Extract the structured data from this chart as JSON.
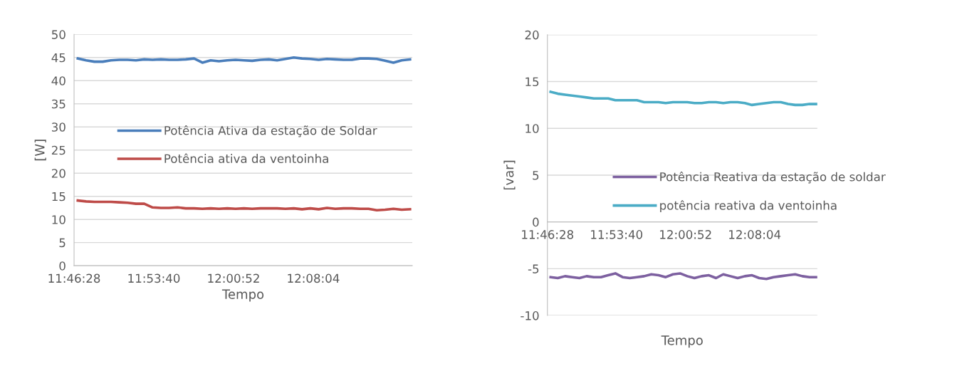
{
  "chart_data": [
    {
      "type": "line",
      "xlabel": "Tempo",
      "ylabel": "[W]",
      "x": [
        11.78,
        11.7925,
        11.805,
        11.8175,
        11.83,
        11.8425,
        11.855,
        11.8675,
        11.88,
        11.8925,
        11.905,
        11.9175,
        11.93,
        11.9425,
        11.955,
        11.9675,
        11.98,
        11.9925,
        12.005,
        12.0175,
        12.03,
        12.0425,
        12.055,
        12.0675,
        12.08,
        12.0925,
        12.105,
        12.1175,
        12.13,
        12.1425,
        12.155,
        12.1675,
        12.18,
        12.1925,
        12.205,
        12.2175,
        12.23,
        12.2425,
        12.255,
        12.2675,
        12.28
      ],
      "series": [
        {
          "name": "Potência Ativa da estação de Soldar",
          "color": "#4a7ebb",
          "values": [
            44.8,
            44.4,
            44.1,
            44.1,
            44.4,
            44.5,
            44.5,
            44.4,
            44.6,
            44.5,
            44.6,
            44.5,
            44.5,
            44.6,
            44.8,
            43.9,
            44.4,
            44.2,
            44.4,
            44.5,
            44.4,
            44.3,
            44.5,
            44.6,
            44.4,
            44.7,
            45.0,
            44.8,
            44.7,
            44.5,
            44.7,
            44.6,
            44.5,
            44.5,
            44.8,
            44.8,
            44.7,
            44.3,
            43.9,
            44.4,
            44.6
          ]
        },
        {
          "name": "Potência ativa da ventoinha",
          "color": "#be4b48",
          "values": [
            14.1,
            13.9,
            13.8,
            13.8,
            13.8,
            13.7,
            13.6,
            13.4,
            13.4,
            12.6,
            12.5,
            12.5,
            12.6,
            12.4,
            12.4,
            12.3,
            12.4,
            12.3,
            12.4,
            12.3,
            12.4,
            12.3,
            12.4,
            12.4,
            12.4,
            12.3,
            12.4,
            12.2,
            12.4,
            12.2,
            12.5,
            12.3,
            12.4,
            12.4,
            12.3,
            12.3,
            12.0,
            12.1,
            12.3,
            12.1,
            12.2
          ]
        }
      ],
      "xlim": [
        11.7744,
        12.2834
      ],
      "xticks": [
        {
          "value": 11.7744,
          "label": "11:46:28"
        },
        {
          "value": 11.8944,
          "label": "11:53:40"
        },
        {
          "value": 12.0144,
          "label": "12:00:52"
        },
        {
          "value": 12.1344,
          "label": "12:08:04"
        }
      ],
      "ylim": [
        0,
        50
      ],
      "yticks": [
        0,
        5,
        10,
        15,
        20,
        25,
        30,
        35,
        40,
        45,
        50
      ],
      "grid": "y",
      "legend": "center left",
      "marker": "none",
      "line_style": "solid"
    },
    {
      "type": "line",
      "xlabel": "Tempo",
      "ylabel": "[var]",
      "x": [
        11.78,
        11.7925,
        11.805,
        11.8175,
        11.83,
        11.8425,
        11.855,
        11.8675,
        11.88,
        11.8925,
        11.905,
        11.9175,
        11.93,
        11.9425,
        11.955,
        11.9675,
        11.98,
        11.9925,
        12.005,
        12.0175,
        12.03,
        12.0425,
        12.055,
        12.0675,
        12.08,
        12.0925,
        12.105,
        12.1175,
        12.13,
        12.1425,
        12.155,
        12.1675,
        12.18,
        12.1925,
        12.205,
        12.2175,
        12.23,
        12.2425
      ],
      "series": [
        {
          "name": "Potência Reativa da estação de soldar",
          "color": "#7d60a0",
          "values": [
            -5.9,
            -6.0,
            -5.8,
            -5.9,
            -6.0,
            -5.8,
            -5.9,
            -5.9,
            -5.7,
            -5.5,
            -5.9,
            -6.0,
            -5.9,
            -5.8,
            -5.6,
            -5.7,
            -5.9,
            -5.6,
            -5.5,
            -5.8,
            -6.0,
            -5.8,
            -5.7,
            -6.0,
            -5.6,
            -5.8,
            -6.0,
            -5.8,
            -5.7,
            -6.0,
            -6.1,
            -5.9,
            -5.8,
            -5.7,
            -5.6,
            -5.8,
            -5.9,
            -5.9
          ]
        },
        {
          "name": "potência reativa da ventoinha",
          "color": "#4bacc6",
          "values": [
            13.9,
            13.7,
            13.6,
            13.5,
            13.4,
            13.3,
            13.2,
            13.2,
            13.2,
            13.0,
            13.0,
            13.0,
            13.0,
            12.8,
            12.8,
            12.8,
            12.7,
            12.8,
            12.8,
            12.8,
            12.7,
            12.7,
            12.8,
            12.8,
            12.7,
            12.8,
            12.8,
            12.7,
            12.5,
            12.6,
            12.7,
            12.8,
            12.8,
            12.6,
            12.5,
            12.5,
            12.6,
            12.6
          ]
        }
      ],
      "xlim": [
        11.7744,
        12.2434
      ],
      "xticks": [
        {
          "value": 11.7744,
          "label": "11:46:28"
        },
        {
          "value": 11.8944,
          "label": "11:53:40"
        },
        {
          "value": 12.0144,
          "label": "12:00:52"
        },
        {
          "value": 12.1344,
          "label": "12:08:04"
        }
      ],
      "ylim": [
        -10,
        20
      ],
      "yticks": [
        -10,
        -5,
        0,
        5,
        10,
        15,
        20
      ],
      "grid": "y",
      "legend": "bottom right",
      "marker": "none",
      "line_style": "solid"
    }
  ]
}
